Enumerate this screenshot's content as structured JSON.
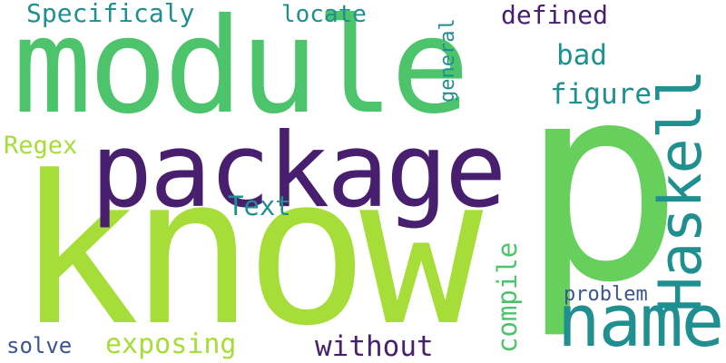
{
  "colors": {
    "background": "#ffffff",
    "purple": "#471f6e",
    "teal": "#1f8f8f",
    "blue": "#3b5592",
    "green": "#4dc36b",
    "lime": "#a6dd39",
    "lightgreen": "#67cf5c"
  },
  "words": {
    "specificaly": "Specificaly",
    "locate": "locate",
    "defined": "defined",
    "bad": "bad",
    "figure": "figure",
    "module": "module",
    "package": "package",
    "know": "know",
    "p": "p",
    "regex": "Regex",
    "text": "Text",
    "problem": "problem",
    "solve": "solve",
    "exposing": "exposing",
    "without": "without",
    "name": "name",
    "haskell": "Haskell",
    "general": "general",
    "compile": "compile"
  }
}
